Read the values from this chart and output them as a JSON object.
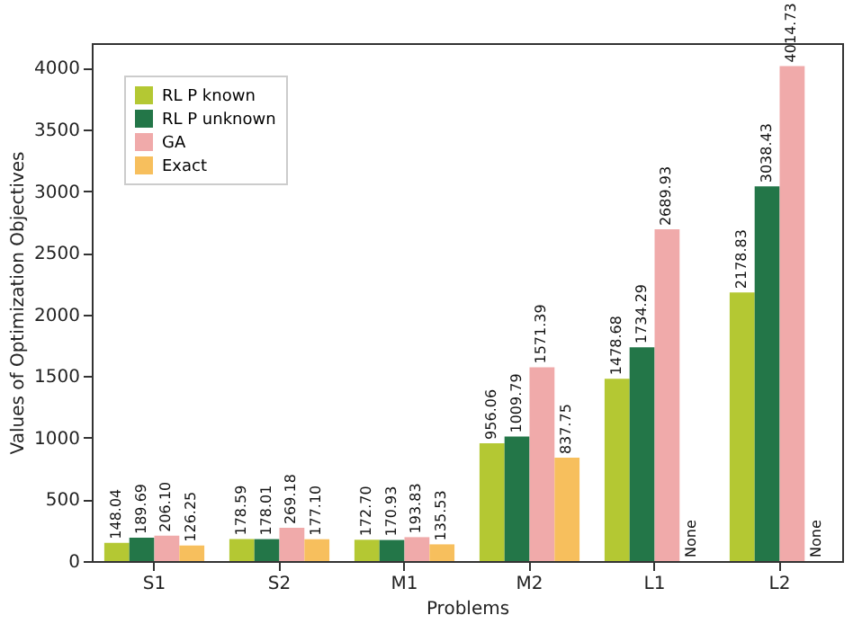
{
  "chart_data": {
    "type": "bar",
    "xlabel": "Problems",
    "ylabel": "Values of Optimization Objectives",
    "categories": [
      "S1",
      "S2",
      "M1",
      "M2",
      "L1",
      "L2"
    ],
    "ylim": [
      0,
      4200
    ],
    "yticks": [
      0,
      500,
      1000,
      1500,
      2000,
      2500,
      3000,
      3500,
      4000
    ],
    "grid": false,
    "legend": "top left",
    "series": [
      {
        "name": "RL P known",
        "color": "#b4c833",
        "values": [
          148.04,
          178.59,
          172.7,
          956.06,
          1478.68,
          2178.83
        ],
        "value_labels": [
          "148.04",
          "178.59",
          "172.70",
          "956.06",
          "1478.68",
          "2178.83"
        ]
      },
      {
        "name": "RL P unknown",
        "color": "#237648",
        "values": [
          189.69,
          178.01,
          170.93,
          1009.79,
          1734.29,
          3038.43
        ],
        "value_labels": [
          "189.69",
          "178.01",
          "170.93",
          "1009.79",
          "1734.29",
          "3038.43"
        ]
      },
      {
        "name": "GA",
        "color": "#f0aaaa",
        "values": [
          206.1,
          269.18,
          193.83,
          1571.39,
          2689.93,
          4014.73
        ],
        "value_labels": [
          "206.10",
          "269.18",
          "193.83",
          "1571.39",
          "2689.93",
          "4014.73"
        ]
      },
      {
        "name": "Exact",
        "color": "#f7bf5d",
        "values": [
          126.25,
          177.1,
          135.53,
          837.75,
          null,
          null
        ],
        "value_labels": [
          "126.25",
          "177.10",
          "135.53",
          "837.75",
          "None",
          "None"
        ]
      }
    ]
  }
}
